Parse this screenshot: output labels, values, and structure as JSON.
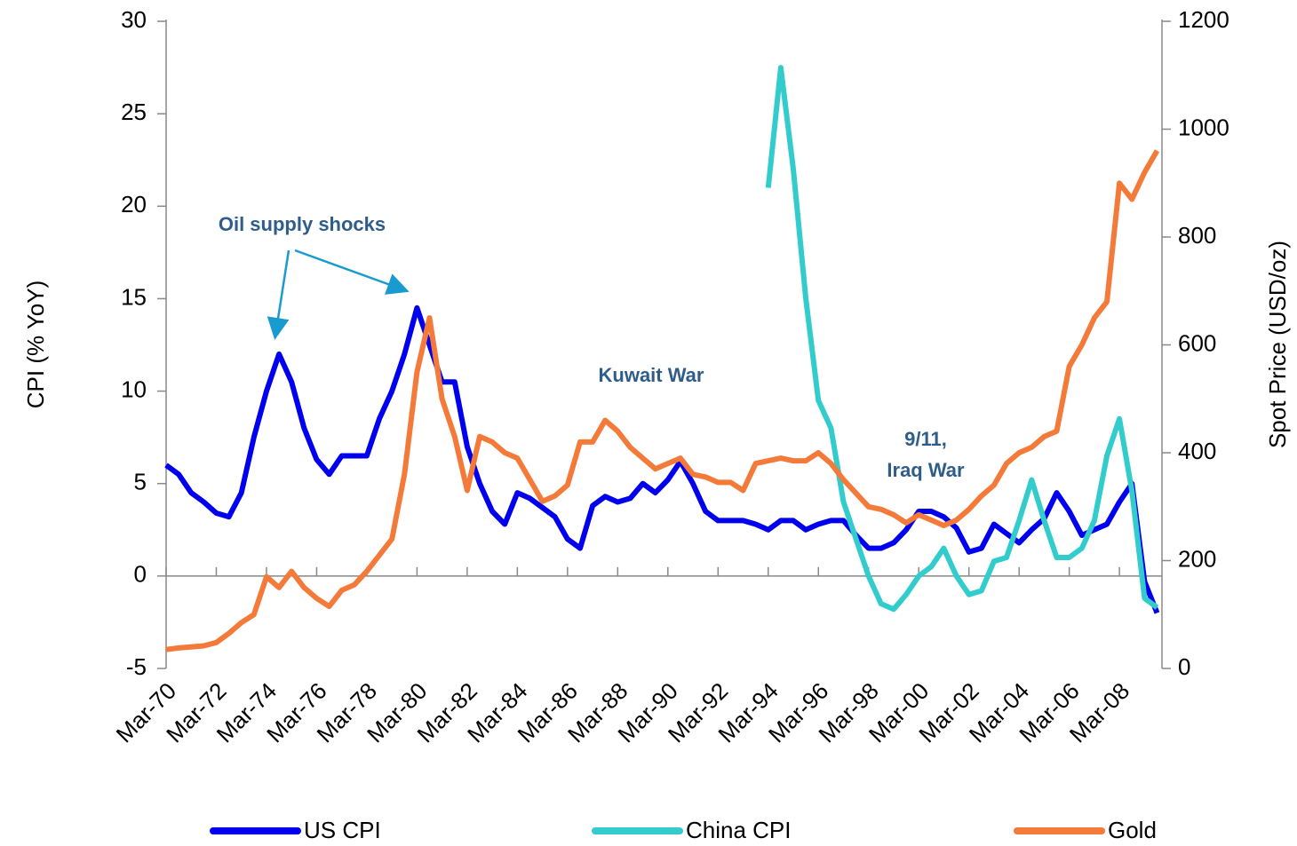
{
  "chart_data": {
    "type": "line",
    "y_label": "CPI (% YoY)",
    "y2_label": "Spot Price (USD/oz)",
    "annotations": [
      {
        "lines": [
          "Oil supply shocks"
        ]
      },
      {
        "lines": [
          "Kuwait War"
        ]
      },
      {
        "lines": [
          "9/11,",
          "Iraq War"
        ]
      }
    ],
    "categories": [
      "Mar-70",
      null,
      null,
      null,
      "Mar-72",
      null,
      null,
      null,
      "Mar-74",
      null,
      null,
      null,
      "Mar-76",
      null,
      null,
      null,
      "Mar-78",
      null,
      null,
      null,
      "Mar-80",
      null,
      null,
      null,
      "Mar-82",
      null,
      null,
      null,
      "Mar-84",
      null,
      null,
      null,
      "Mar-86",
      null,
      null,
      null,
      "Mar-88",
      null,
      null,
      null,
      "Mar-90",
      null,
      null,
      null,
      "Mar-92",
      null,
      null,
      null,
      "Mar-94",
      null,
      null,
      null,
      "Mar-96",
      null,
      null,
      null,
      "Mar-98",
      null,
      null,
      null,
      "Mar-00",
      null,
      null,
      null,
      "Mar-02",
      null,
      null,
      null,
      "Mar-04",
      null,
      null,
      null,
      "Mar-06",
      null,
      null,
      null,
      "Mar-08",
      null,
      null,
      null
    ],
    "series": [
      {
        "name": "US CPI",
        "color": "#0000ee",
        "axis": "y",
        "values": [
          6,
          5.5,
          4.5,
          4,
          3.4,
          3.2,
          4.5,
          7.5,
          10,
          12,
          10.5,
          8,
          6.3,
          5.5,
          6.5,
          6.5,
          6.5,
          8.5,
          10,
          12,
          14.5,
          12.5,
          10.5,
          10.5,
          7,
          5,
          3.5,
          2.8,
          4.5,
          4.2,
          3.7,
          3.2,
          2,
          1.5,
          3.8,
          4.3,
          4,
          4.2,
          5,
          4.5,
          5.2,
          6.2,
          5,
          3.5,
          3,
          3,
          3,
          2.8,
          2.5,
          3,
          3,
          2.5,
          2.8,
          3,
          3,
          2.2,
          1.5,
          1.5,
          1.8,
          2.5,
          3.5,
          3.5,
          3.2,
          2.6,
          1.3,
          1.5,
          2.8,
          2.3,
          1.8,
          2.5,
          3.1,
          4.5,
          3.5,
          2.2,
          2.5,
          2.8,
          4,
          5,
          -0.3,
          -2
        ]
      },
      {
        "name": "China CPI",
        "color": "#33cccc",
        "axis": "y",
        "values": [
          null,
          null,
          null,
          null,
          null,
          null,
          null,
          null,
          null,
          null,
          null,
          null,
          null,
          null,
          null,
          null,
          null,
          null,
          null,
          null,
          null,
          null,
          null,
          null,
          null,
          null,
          null,
          null,
          null,
          null,
          null,
          null,
          null,
          null,
          null,
          null,
          null,
          null,
          null,
          null,
          null,
          null,
          null,
          null,
          null,
          null,
          null,
          null,
          21,
          27.5,
          22,
          15,
          9.5,
          8,
          4,
          2,
          0,
          -1.5,
          -1.8,
          -1,
          0,
          0.5,
          1.5,
          0,
          -1,
          -0.8,
          0.8,
          1,
          3,
          5.2,
          3,
          1,
          1,
          1.5,
          3,
          6.5,
          8.5,
          4.6,
          -1.2,
          -1.7
        ]
      },
      {
        "name": "Gold",
        "color": "#f47a3a",
        "axis": "y2",
        "values": [
          35,
          38,
          40,
          42,
          48,
          65,
          85,
          100,
          170,
          150,
          180,
          150,
          130,
          115,
          145,
          155,
          180,
          210,
          240,
          360,
          550,
          650,
          500,
          430,
          330,
          430,
          420,
          400,
          390,
          350,
          310,
          320,
          340,
          420,
          420,
          460,
          440,
          410,
          390,
          370,
          380,
          390,
          360,
          355,
          345,
          345,
          330,
          380,
          385,
          390,
          385,
          385,
          400,
          380,
          350,
          325,
          300,
          295,
          285,
          270,
          285,
          275,
          265,
          275,
          295,
          320,
          340,
          380,
          400,
          410,
          430,
          440,
          560,
          600,
          650,
          680,
          900,
          870,
          920,
          960
        ]
      }
    ],
    "ylim": [
      -5,
      30
    ],
    "yticks": [
      -5,
      0,
      5,
      10,
      15,
      20,
      25,
      30
    ],
    "y2lim": [
      0,
      1200
    ],
    "y2ticks": [
      0,
      200,
      400,
      600,
      800,
      1000,
      1200
    ]
  }
}
